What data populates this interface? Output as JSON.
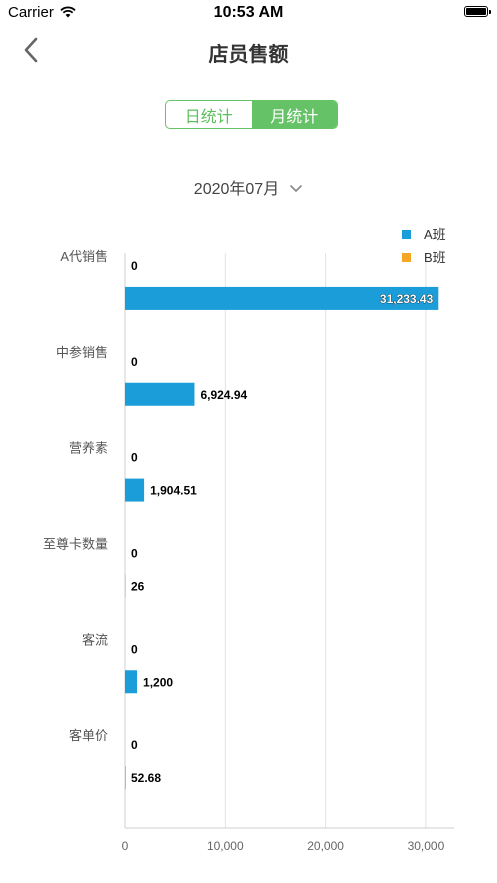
{
  "status_bar": {
    "carrier": "Carrier",
    "time": "10:53 AM"
  },
  "nav": {
    "title": "店员售额",
    "back_icon": "chevron-left-icon"
  },
  "segmented": {
    "tabs": [
      {
        "label": "日统计",
        "active": false
      },
      {
        "label": "月统计",
        "active": true
      }
    ]
  },
  "date_picker": {
    "value": "2020年07月",
    "icon": "chevron-down-icon"
  },
  "colors": {
    "accent_green": "#66c266",
    "series_a": "#1a9dd8",
    "series_b": "#f5a623"
  },
  "chart_data": {
    "type": "bar",
    "orientation": "horizontal",
    "categories": [
      "A代销售",
      "中参销售",
      "营养素",
      "至尊卡数量",
      "客流",
      "客单价"
    ],
    "series": [
      {
        "name": "A班",
        "color": "#1a9dd8",
        "values": [
          31233.43,
          6924.94,
          1904.51,
          26,
          1200,
          52.68
        ],
        "labels": [
          "31,233.43",
          "6,924.94",
          "1,904.51",
          "26",
          "1,200",
          "52.68"
        ]
      },
      {
        "name": "B班",
        "color": "#f5a623",
        "values": [
          0,
          0,
          0,
          0,
          0,
          0
        ],
        "labels": [
          "0",
          "0",
          "0",
          "0",
          "0",
          "0"
        ]
      }
    ],
    "x_ticks": [
      "0",
      "10,000",
      "20,000",
      "30,000"
    ],
    "x_tick_values": [
      0,
      10000,
      20000,
      30000
    ],
    "xlim": [
      0,
      32800
    ],
    "grid": true,
    "legend_position": "top-right"
  }
}
